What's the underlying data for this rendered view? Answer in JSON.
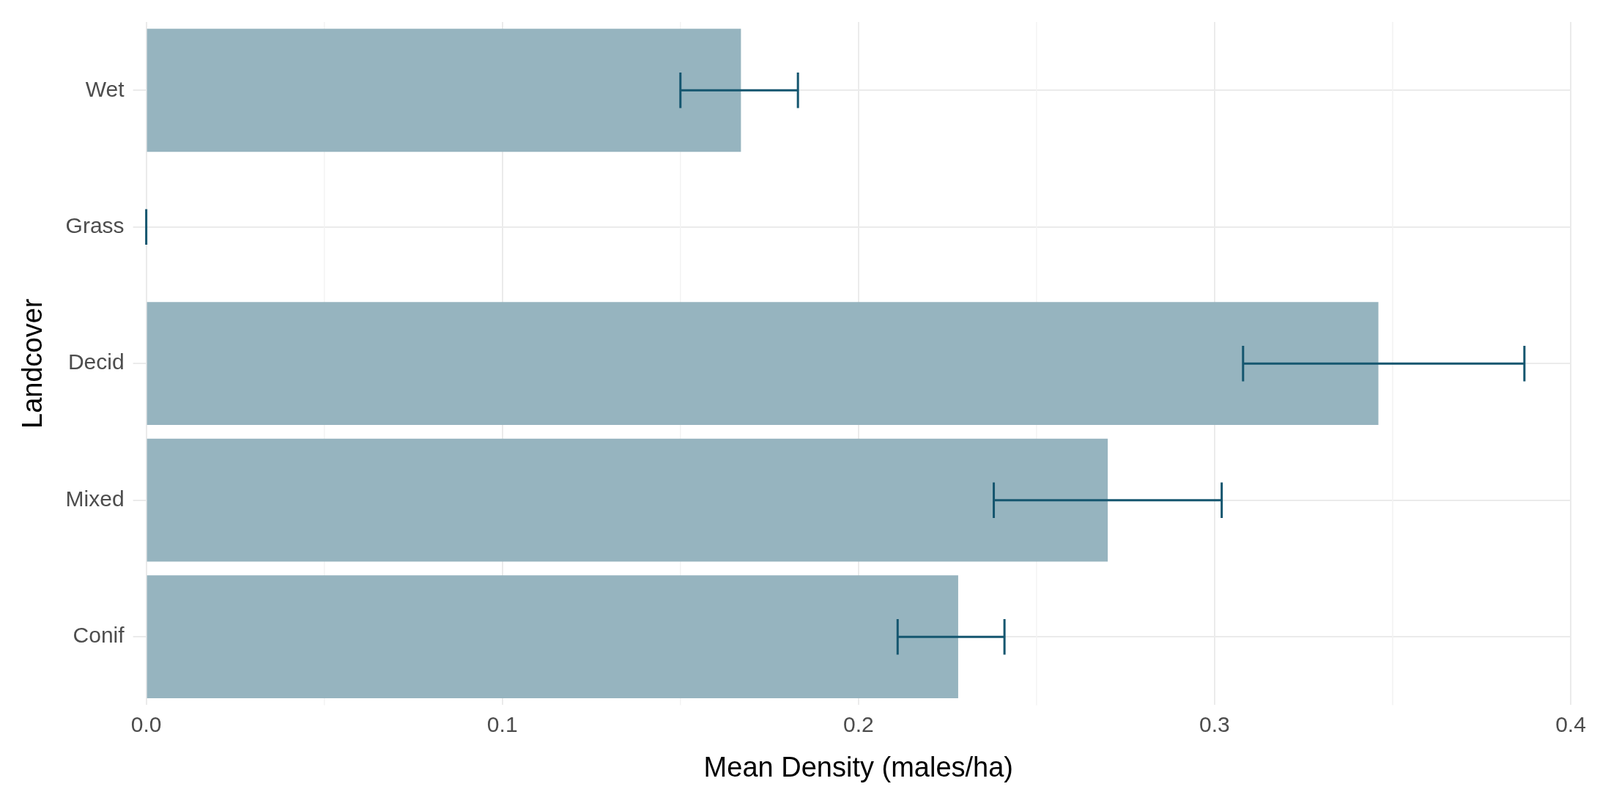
{
  "chart_data": {
    "type": "bar",
    "orientation": "horizontal",
    "x_label": "Mean Density (males/ha)",
    "y_label": "Landcover",
    "categories": [
      "Wet",
      "Grass",
      "Decid",
      "Mixed",
      "Conif"
    ],
    "values": [
      0.167,
      0,
      0.346,
      0.27,
      0.228
    ],
    "error_bars": [
      [
        0.15,
        0.183
      ],
      [
        0,
        0
      ],
      [
        0.308,
        0.387
      ],
      [
        0.238,
        0.302
      ],
      [
        0.211,
        0.241
      ]
    ],
    "color": "#96b4bf",
    "error_color": "#15566f",
    "xlim": [
      0,
      0.4
    ],
    "xticks": [
      {
        "value": 0,
        "label": "0.0"
      },
      0.1,
      0.2,
      0.3,
      0.4
    ],
    "grid": true
  }
}
